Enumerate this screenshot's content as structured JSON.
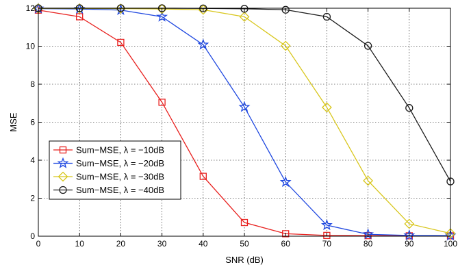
{
  "chart_data": {
    "type": "line",
    "xlabel": "SNR (dB)",
    "ylabel": "MSE",
    "xlim": [
      0,
      100
    ],
    "ylim": [
      0,
      12
    ],
    "xticks": [
      0,
      10,
      20,
      30,
      40,
      50,
      60,
      70,
      80,
      90,
      100
    ],
    "yticks": [
      0,
      2,
      4,
      6,
      8,
      10,
      12
    ],
    "grid": true,
    "legend_position": "lower-left",
    "x": [
      0,
      10,
      20,
      30,
      40,
      50,
      60,
      70,
      80,
      90,
      100
    ],
    "series": [
      {
        "name": "Sum−MSE, λ = −10dB",
        "color": "#e8201e",
        "marker": "square",
        "values": [
          11.9,
          11.55,
          10.2,
          7.05,
          3.15,
          0.72,
          0.13,
          0.04,
          0.03,
          0.02,
          0.02
        ]
      },
      {
        "name": "Sum−MSE, λ = −20dB",
        "color": "#1e47e0",
        "marker": "star",
        "values": [
          11.98,
          11.96,
          11.9,
          11.55,
          10.08,
          6.8,
          2.85,
          0.58,
          0.1,
          0.04,
          0.03
        ]
      },
      {
        "name": "Sum−MSE, λ = −30dB",
        "color": "#d8c61b",
        "marker": "diamond",
        "values": [
          11.99,
          11.99,
          11.98,
          11.96,
          11.92,
          11.55,
          10.02,
          6.78,
          2.92,
          0.65,
          0.15
        ]
      },
      {
        "name": "Sum−MSE, λ = −40dB",
        "color": "#1a1a1a",
        "marker": "circle",
        "values": [
          12.0,
          12.0,
          12.0,
          12.0,
          11.99,
          11.97,
          11.92,
          11.55,
          10.02,
          6.75,
          2.88
        ]
      }
    ]
  }
}
